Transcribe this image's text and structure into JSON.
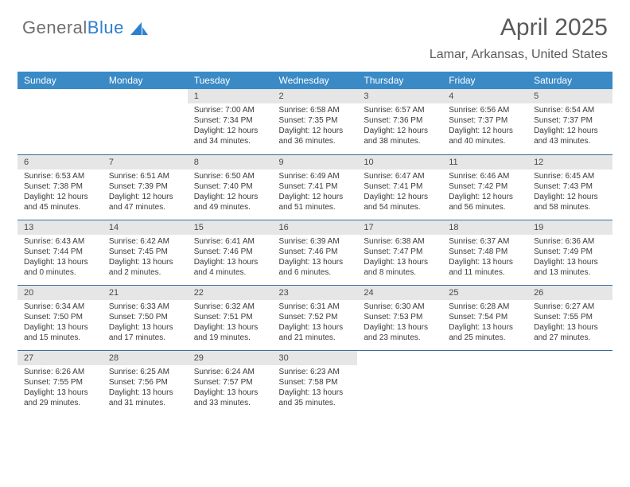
{
  "logo": {
    "part1": "General",
    "part2": "Blue"
  },
  "title": "April 2025",
  "subtitle": "Lamar, Arkansas, United States",
  "colors": {
    "header_bg": "#3a8ac6",
    "header_fg": "#ffffff",
    "daynum_bg": "#e6e6e6",
    "row_border": "#3a6d9a",
    "text": "#3a3a3a",
    "title_color": "#5a5a5a",
    "logo_gray": "#6f6f6f",
    "logo_blue": "#2f7fcf"
  },
  "weekdays": [
    "Sunday",
    "Monday",
    "Tuesday",
    "Wednesday",
    "Thursday",
    "Friday",
    "Saturday"
  ],
  "first_weekday_index": 2,
  "days": [
    {
      "n": 1,
      "sr": "7:00 AM",
      "ss": "7:34 PM",
      "dl": "12 hours and 34 minutes."
    },
    {
      "n": 2,
      "sr": "6:58 AM",
      "ss": "7:35 PM",
      "dl": "12 hours and 36 minutes."
    },
    {
      "n": 3,
      "sr": "6:57 AM",
      "ss": "7:36 PM",
      "dl": "12 hours and 38 minutes."
    },
    {
      "n": 4,
      "sr": "6:56 AM",
      "ss": "7:37 PM",
      "dl": "12 hours and 40 minutes."
    },
    {
      "n": 5,
      "sr": "6:54 AM",
      "ss": "7:37 PM",
      "dl": "12 hours and 43 minutes."
    },
    {
      "n": 6,
      "sr": "6:53 AM",
      "ss": "7:38 PM",
      "dl": "12 hours and 45 minutes."
    },
    {
      "n": 7,
      "sr": "6:51 AM",
      "ss": "7:39 PM",
      "dl": "12 hours and 47 minutes."
    },
    {
      "n": 8,
      "sr": "6:50 AM",
      "ss": "7:40 PM",
      "dl": "12 hours and 49 minutes."
    },
    {
      "n": 9,
      "sr": "6:49 AM",
      "ss": "7:41 PM",
      "dl": "12 hours and 51 minutes."
    },
    {
      "n": 10,
      "sr": "6:47 AM",
      "ss": "7:41 PM",
      "dl": "12 hours and 54 minutes."
    },
    {
      "n": 11,
      "sr": "6:46 AM",
      "ss": "7:42 PM",
      "dl": "12 hours and 56 minutes."
    },
    {
      "n": 12,
      "sr": "6:45 AM",
      "ss": "7:43 PM",
      "dl": "12 hours and 58 minutes."
    },
    {
      "n": 13,
      "sr": "6:43 AM",
      "ss": "7:44 PM",
      "dl": "13 hours and 0 minutes."
    },
    {
      "n": 14,
      "sr": "6:42 AM",
      "ss": "7:45 PM",
      "dl": "13 hours and 2 minutes."
    },
    {
      "n": 15,
      "sr": "6:41 AM",
      "ss": "7:46 PM",
      "dl": "13 hours and 4 minutes."
    },
    {
      "n": 16,
      "sr": "6:39 AM",
      "ss": "7:46 PM",
      "dl": "13 hours and 6 minutes."
    },
    {
      "n": 17,
      "sr": "6:38 AM",
      "ss": "7:47 PM",
      "dl": "13 hours and 8 minutes."
    },
    {
      "n": 18,
      "sr": "6:37 AM",
      "ss": "7:48 PM",
      "dl": "13 hours and 11 minutes."
    },
    {
      "n": 19,
      "sr": "6:36 AM",
      "ss": "7:49 PM",
      "dl": "13 hours and 13 minutes."
    },
    {
      "n": 20,
      "sr": "6:34 AM",
      "ss": "7:50 PM",
      "dl": "13 hours and 15 minutes."
    },
    {
      "n": 21,
      "sr": "6:33 AM",
      "ss": "7:50 PM",
      "dl": "13 hours and 17 minutes."
    },
    {
      "n": 22,
      "sr": "6:32 AM",
      "ss": "7:51 PM",
      "dl": "13 hours and 19 minutes."
    },
    {
      "n": 23,
      "sr": "6:31 AM",
      "ss": "7:52 PM",
      "dl": "13 hours and 21 minutes."
    },
    {
      "n": 24,
      "sr": "6:30 AM",
      "ss": "7:53 PM",
      "dl": "13 hours and 23 minutes."
    },
    {
      "n": 25,
      "sr": "6:28 AM",
      "ss": "7:54 PM",
      "dl": "13 hours and 25 minutes."
    },
    {
      "n": 26,
      "sr": "6:27 AM",
      "ss": "7:55 PM",
      "dl": "13 hours and 27 minutes."
    },
    {
      "n": 27,
      "sr": "6:26 AM",
      "ss": "7:55 PM",
      "dl": "13 hours and 29 minutes."
    },
    {
      "n": 28,
      "sr": "6:25 AM",
      "ss": "7:56 PM",
      "dl": "13 hours and 31 minutes."
    },
    {
      "n": 29,
      "sr": "6:24 AM",
      "ss": "7:57 PM",
      "dl": "13 hours and 33 minutes."
    },
    {
      "n": 30,
      "sr": "6:23 AM",
      "ss": "7:58 PM",
      "dl": "13 hours and 35 minutes."
    }
  ],
  "labels": {
    "sunrise": "Sunrise:",
    "sunset": "Sunset:",
    "daylight": "Daylight:"
  }
}
